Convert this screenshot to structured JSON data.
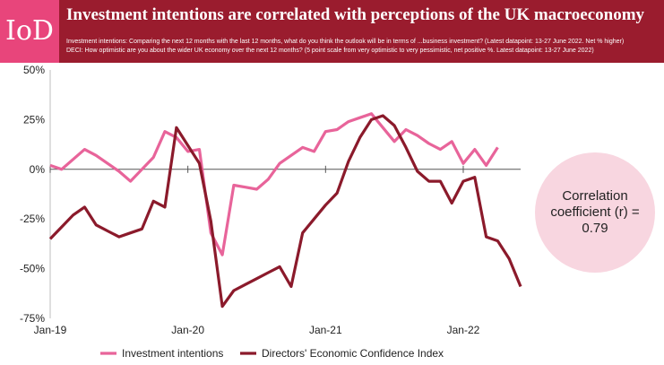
{
  "header": {
    "logo": "IoD",
    "title": "Investment intentions are correlated with perceptions of the UK macroeconomy",
    "subtitle_1": "Investment intentions: Comparing the next 12 months with the last 12 months, what do you think the outlook will be in terms of ...business investment? (Latest datapoint: 13-27 June  2022. Net % higher)",
    "subtitle_2": "DECI: How optimistic are you about the wider UK economy over the next 12 months? (5 point scale from very optimistic to very pessimistic, net positive %. Latest datapoint: 13-27 June  2022)"
  },
  "annotation": "Correlation coefficient (r) = 0.79",
  "colors": {
    "header": "#9a1c2e",
    "logo_bg": "#e8457b",
    "investment": "#e8649a",
    "deci": "#8b1a2b",
    "bubble": "#f8d6e0"
  },
  "chart_data": {
    "type": "line",
    "x": [
      "2019-01",
      "2019-02",
      "2019-03",
      "2019-04",
      "2019-05",
      "2019-06",
      "2019-07",
      "2019-08",
      "2019-09",
      "2019-10",
      "2019-11",
      "2019-12",
      "2020-01",
      "2020-02",
      "2020-03",
      "2020-04",
      "2020-05",
      "2020-06",
      "2020-07",
      "2020-08",
      "2020-09",
      "2020-10",
      "2020-11",
      "2020-12",
      "2021-01",
      "2021-02",
      "2021-03",
      "2021-04",
      "2021-05",
      "2021-06",
      "2021-07",
      "2021-08",
      "2021-09",
      "2021-10",
      "2021-11",
      "2021-12",
      "2022-01",
      "2022-02",
      "2022-03",
      "2022-04",
      "2022-05",
      "2022-06"
    ],
    "x_tick_labels": [
      "Jan-19",
      "Jan-20",
      "Jan-21",
      "Jan-22"
    ],
    "x_tick_positions": [
      "2019-01",
      "2020-01",
      "2021-01",
      "2022-01"
    ],
    "ylim": [
      -75,
      50
    ],
    "y_ticks": [
      50,
      25,
      0,
      -25,
      -50,
      -75
    ],
    "y_tick_labels": [
      "50%",
      "25%",
      "0%",
      "-25%",
      "-50%",
      "-75%"
    ],
    "grid": false,
    "legend_position": "bottom",
    "series": [
      {
        "name": "Investment intentions",
        "values": [
          2,
          0,
          5,
          10,
          7,
          3,
          -1,
          -6,
          0,
          6,
          19,
          16,
          9,
          10,
          -32,
          -43,
          -8,
          -9,
          -10,
          -5,
          3,
          7,
          11,
          9,
          19,
          20,
          24,
          26,
          28,
          21,
          14,
          20,
          17,
          13,
          10,
          14,
          3,
          10,
          2,
          11,
          null,
          null
        ]
      },
      {
        "name": "Directors' Economic Confidence Index",
        "values": [
          -35,
          -29,
          -23,
          -19,
          -28,
          -31,
          -34,
          -32,
          -30,
          -16,
          -19,
          21,
          12,
          3,
          -26,
          -69,
          -61,
          -58,
          -55,
          -52,
          -49,
          -59,
          -32,
          -25,
          -18,
          -12,
          4,
          16,
          25,
          27,
          22,
          11,
          -1,
          -6,
          -6,
          -17,
          -6,
          -4,
          -34,
          -36,
          -45,
          -59
        ]
      }
    ]
  }
}
